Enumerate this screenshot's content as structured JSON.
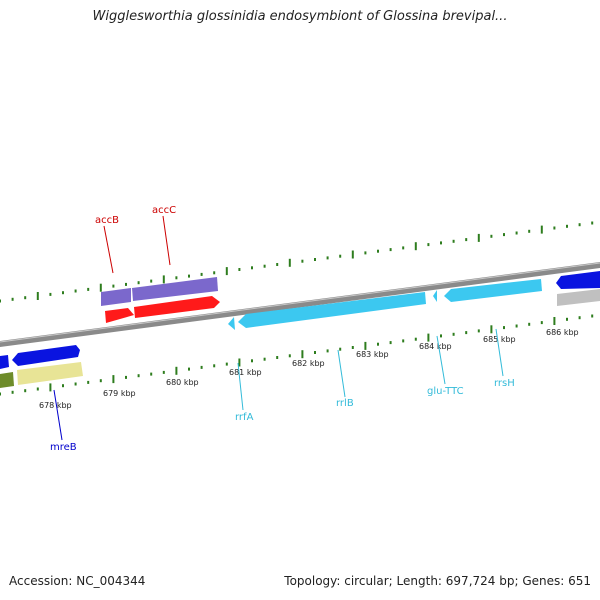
{
  "title": "Wigglesworthia glossinidia endosymbiont of Glossina brevipal...",
  "footer": {
    "accession": "Accession: NC_004344",
    "summary": "Topology: circular; Length: 697,724 bp; Genes: 651"
  },
  "kbp_labels": [
    "678 kbp",
    "679 kbp",
    "680 kbp",
    "681 kbp",
    "682 kbp",
    "683 kbp",
    "684 kbp",
    "685 kbp",
    "686 kbp"
  ],
  "gene_labels": {
    "accB": "accB",
    "accC": "accC",
    "mreB": "mreB",
    "rrfA": "rrfA",
    "rrlB": "rrlB",
    "gluTTC": "glu-TTC",
    "rrsH": "rrsH"
  },
  "colors": {
    "backbone": "#888888",
    "tick": "#2e7d1e",
    "acc_b_feature": "#7b68cc",
    "acc_c_feature": "#ff1a1a",
    "gene_blue": "#0a14e0",
    "rrna_cyan": "#3cc8f0",
    "olive": "#6e8c2a",
    "khaki": "#e8e496",
    "grey": "#c0c0c0",
    "label_red": "#cc0000",
    "label_blue": "#0000cc",
    "label_cyan": "#33bbd9"
  }
}
